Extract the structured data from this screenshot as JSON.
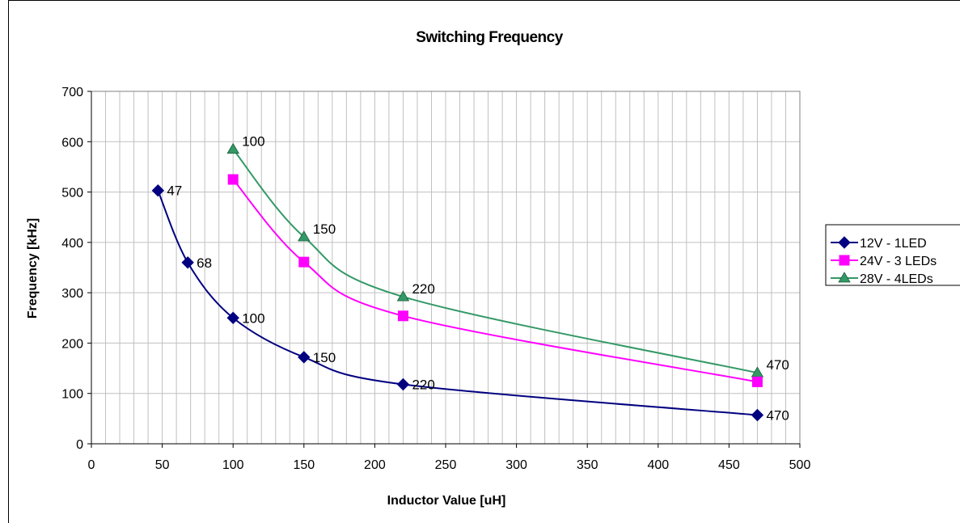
{
  "chart_data": {
    "type": "line",
    "title": "Switching Frequency",
    "xlabel": "Inductor Value [uH]",
    "ylabel": "Frequency [kHz]",
    "xlim": [
      0,
      500
    ],
    "ylim": [
      0,
      700
    ],
    "xticks": [
      0,
      50,
      100,
      150,
      200,
      250,
      300,
      350,
      400,
      450,
      500
    ],
    "yticks": [
      0,
      100,
      200,
      300,
      400,
      500,
      600,
      700
    ],
    "grid": true,
    "legend_position": "right",
    "series": [
      {
        "name": "12V - 1LED",
        "color": "#000080",
        "marker": "diamond",
        "x": [
          47,
          68,
          100,
          150,
          220,
          470
        ],
        "y": [
          503,
          360,
          250,
          172,
          118,
          57
        ],
        "labels": [
          "47",
          "68",
          "100",
          "150",
          "220",
          "470"
        ]
      },
      {
        "name": "24V - 3 LEDs",
        "color": "#ff00ff",
        "marker": "square",
        "x": [
          100,
          150,
          220,
          470
        ],
        "y": [
          525,
          361,
          254,
          123
        ],
        "labels": []
      },
      {
        "name": "28V - 4LEDs",
        "color": "#339966",
        "marker": "triangle",
        "x": [
          100,
          150,
          220,
          470
        ],
        "y": [
          585,
          411,
          292,
          141
        ],
        "labels": [
          "100",
          "150",
          "220",
          "470"
        ]
      }
    ]
  }
}
